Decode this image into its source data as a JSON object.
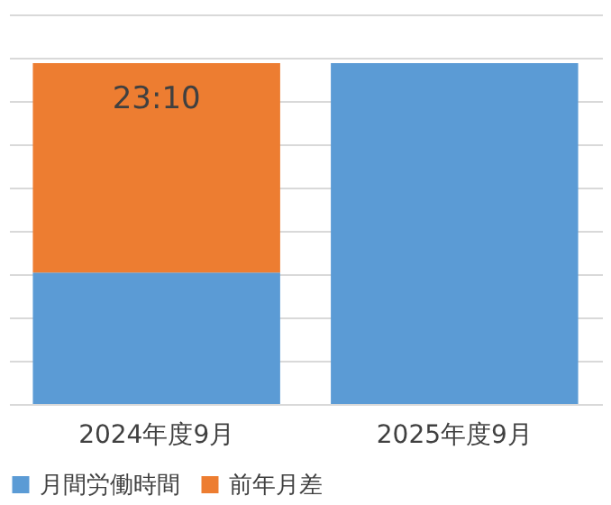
{
  "chart_data": {
    "type": "bar",
    "stacked": true,
    "categories": [
      "2024年度9月",
      "2025年度9月"
    ],
    "series": [
      {
        "name": "月間労働時間",
        "color": "#5b9bd5",
        "values": [
          14.56,
          37.73
        ]
      },
      {
        "name": "前年月差",
        "color": "#ed7d31",
        "values": [
          23.17,
          null
        ],
        "value_labels": [
          "23:10",
          null
        ]
      }
    ],
    "grid": "y",
    "legend": "bottom"
  }
}
